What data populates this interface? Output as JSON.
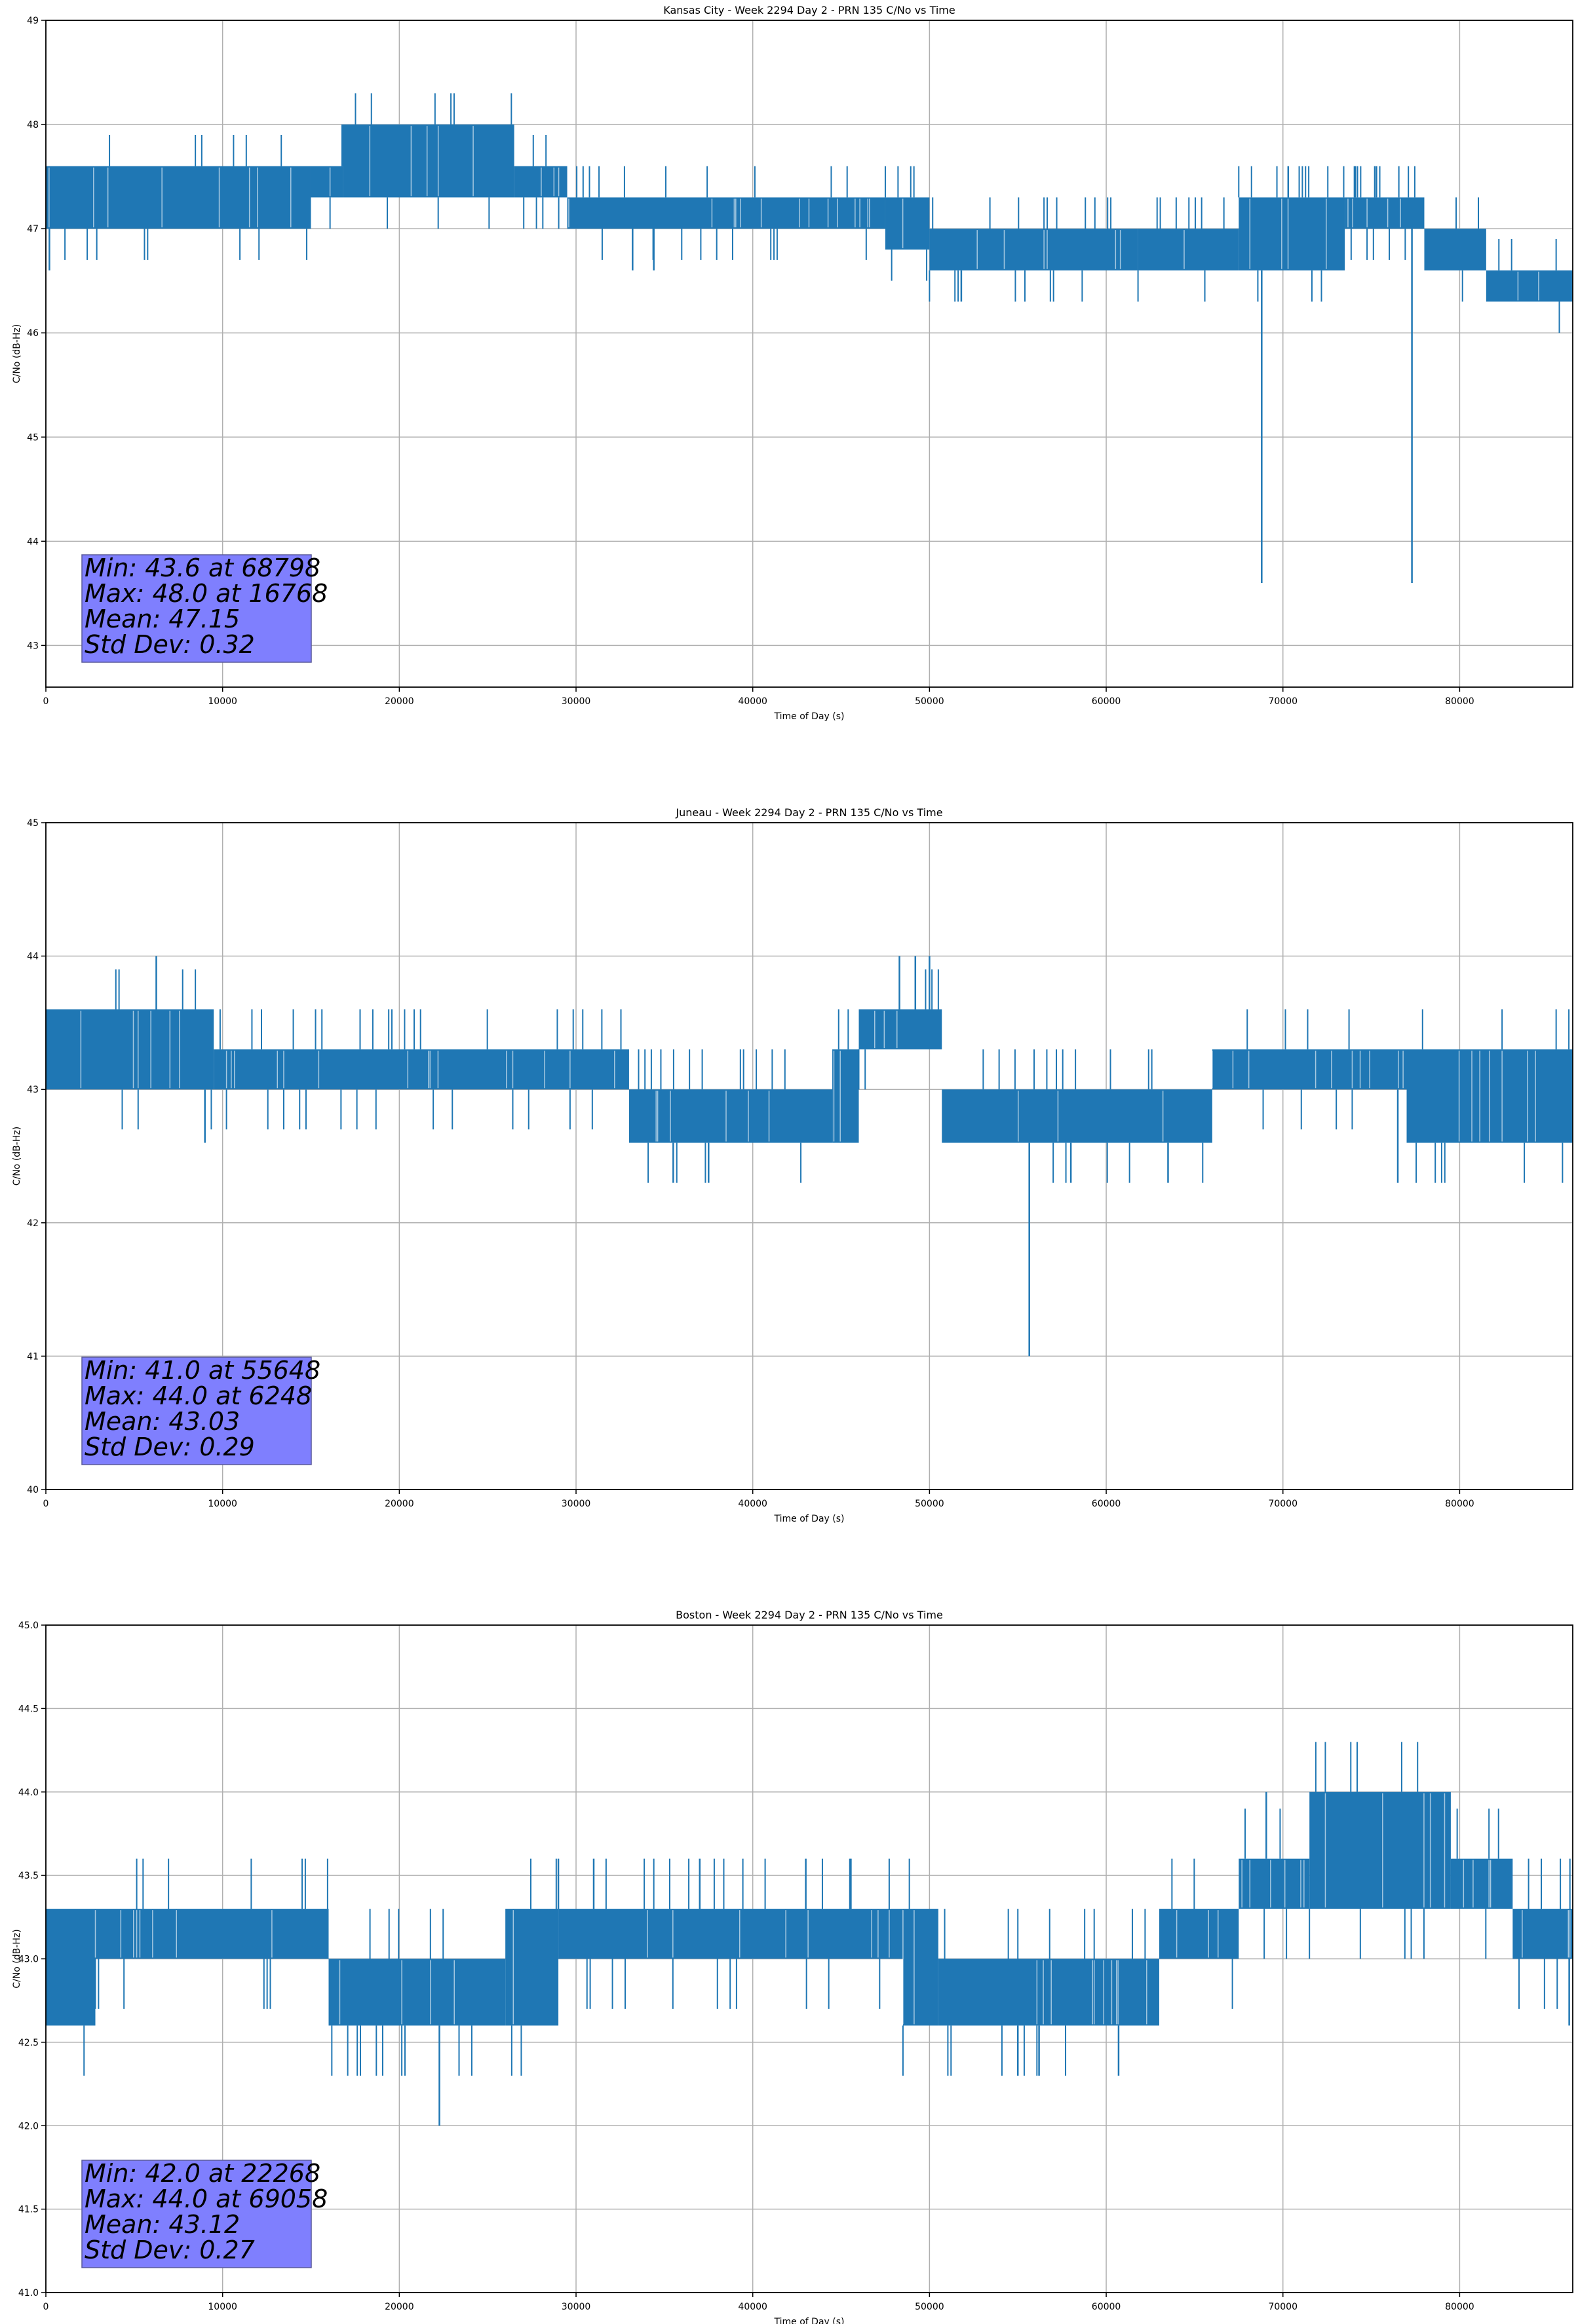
{
  "chart_data": [
    {
      "type": "line",
      "title": "Kansas City - Week 2294 Day 2 - PRN 135 C/No vs Time",
      "xlabel": "Time of Day (s)",
      "ylabel": "C/No (dB-Hz)",
      "xlim": [
        0,
        86400
      ],
      "ylim": [
        42.6,
        49
      ],
      "xticks": [
        0,
        10000,
        20000,
        30000,
        40000,
        50000,
        60000,
        70000,
        80000
      ],
      "yticks": [
        43,
        44,
        45,
        46,
        47,
        48,
        49
      ],
      "ytick_labels": [
        "43",
        "44",
        "45",
        "46",
        "47",
        "48",
        "49"
      ],
      "grid": true,
      "color": "#1f77b4",
      "series": [
        {
          "bands": [
            {
              "x0": 0,
              "x1": 15000,
              "lo": 47.0,
              "hi": 47.6
            },
            {
              "x0": 15000,
              "x1": 16800,
              "lo": 47.3,
              "hi": 47.6
            },
            {
              "x0": 16800,
              "x1": 26500,
              "lo": 47.3,
              "hi": 48.0
            },
            {
              "x0": 26500,
              "x1": 29500,
              "lo": 47.3,
              "hi": 47.6
            },
            {
              "x0": 29500,
              "x1": 47500,
              "lo": 47.0,
              "hi": 47.3
            },
            {
              "x0": 47500,
              "x1": 50000,
              "lo": 46.8,
              "hi": 47.3
            },
            {
              "x0": 50000,
              "x1": 61800,
              "lo": 46.6,
              "hi": 47.0
            },
            {
              "x0": 61800,
              "x1": 67500,
              "lo": 46.6,
              "hi": 47.0
            },
            {
              "x0": 67500,
              "x1": 73500,
              "lo": 46.6,
              "hi": 47.3
            },
            {
              "x0": 73500,
              "x1": 78000,
              "lo": 47.0,
              "hi": 47.3
            },
            {
              "x0": 78000,
              "x1": 81500,
              "lo": 46.6,
              "hi": 47.0
            },
            {
              "x0": 81500,
              "x1": 86400,
              "lo": 46.3,
              "hi": 46.6
            }
          ],
          "spikes": [
            {
              "x": 200,
              "y": 46.6
            },
            {
              "x": 16768,
              "y": 48.0
            },
            {
              "x": 33200,
              "y": 46.6
            },
            {
              "x": 34400,
              "y": 46.6
            },
            {
              "x": 51800,
              "y": 46.3
            },
            {
              "x": 68798,
              "y": 43.6
            },
            {
              "x": 77300,
              "y": 43.6
            },
            {
              "x": 70300,
              "y": 47.6
            },
            {
              "x": 74100,
              "y": 47.6
            },
            {
              "x": 75200,
              "y": 47.6
            }
          ]
        }
      ],
      "stats": {
        "min": "Min: 43.6 at 68798",
        "max": "Max: 48.0 at 16768",
        "mean": "Mean: 47.15",
        "std": "Std Dev: 0.32"
      }
    },
    {
      "type": "line",
      "title": "Juneau - Week 2294 Day 2 - PRN 135 C/No vs Time",
      "xlabel": "Time of Day (s)",
      "ylabel": "C/No (dB-Hz)",
      "xlim": [
        0,
        86400
      ],
      "ylim": [
        40,
        45
      ],
      "xticks": [
        0,
        10000,
        20000,
        30000,
        40000,
        50000,
        60000,
        70000,
        80000
      ],
      "yticks": [
        40,
        41,
        42,
        43,
        44,
        45
      ],
      "ytick_labels": [
        "40",
        "41",
        "42",
        "43",
        "44",
        "45"
      ],
      "grid": true,
      "color": "#1f77b4",
      "series": [
        {
          "bands": [
            {
              "x0": 0,
              "x1": 9500,
              "lo": 43.0,
              "hi": 43.6
            },
            {
              "x0": 9500,
              "x1": 33000,
              "lo": 43.0,
              "hi": 43.3
            },
            {
              "x0": 33000,
              "x1": 44500,
              "lo": 42.6,
              "hi": 43.0
            },
            {
              "x0": 44500,
              "x1": 46000,
              "lo": 42.6,
              "hi": 43.3
            },
            {
              "x0": 46000,
              "x1": 50700,
              "lo": 43.3,
              "hi": 43.6
            },
            {
              "x0": 50700,
              "x1": 66000,
              "lo": 42.6,
              "hi": 43.0
            },
            {
              "x0": 66000,
              "x1": 77000,
              "lo": 43.0,
              "hi": 43.3
            },
            {
              "x0": 77000,
              "x1": 86400,
              "lo": 42.6,
              "hi": 43.3
            }
          ],
          "spikes": [
            {
              "x": 6248,
              "y": 44.0
            },
            {
              "x": 9000,
              "y": 42.6
            },
            {
              "x": 35500,
              "y": 42.3
            },
            {
              "x": 37500,
              "y": 42.3
            },
            {
              "x": 48300,
              "y": 44.0
            },
            {
              "x": 49200,
              "y": 44.0
            },
            {
              "x": 50000,
              "y": 44.0
            },
            {
              "x": 55648,
              "y": 41.0
            },
            {
              "x": 58000,
              "y": 42.3
            },
            {
              "x": 63500,
              "y": 42.3
            },
            {
              "x": 76500,
              "y": 42.3
            }
          ]
        }
      ],
      "stats": {
        "min": "Min: 41.0 at 55648",
        "max": "Max: 44.0 at 6248",
        "mean": "Mean: 43.03",
        "std": "Std Dev: 0.29"
      }
    },
    {
      "type": "line",
      "title": "Boston - Week 2294 Day 2 - PRN 135 C/No vs Time",
      "xlabel": "Time of Day (s)",
      "ylabel": "C/No (dB-Hz)",
      "xlim": [
        0,
        86400
      ],
      "ylim": [
        41,
        45
      ],
      "xticks": [
        0,
        10000,
        20000,
        30000,
        40000,
        50000,
        60000,
        70000,
        80000
      ],
      "yticks": [
        41.0,
        41.5,
        42.0,
        42.5,
        43.0,
        43.5,
        44.0,
        44.5,
        45.0
      ],
      "ytick_labels": [
        "41.0",
        "41.5",
        "42.0",
        "42.5",
        "43.0",
        "43.5",
        "44.0",
        "44.5",
        "45.0"
      ],
      "grid": true,
      "color": "#1f77b4",
      "series": [
        {
          "bands": [
            {
              "x0": 0,
              "x1": 2800,
              "lo": 42.6,
              "hi": 43.3
            },
            {
              "x0": 2800,
              "x1": 16000,
              "lo": 43.0,
              "hi": 43.3
            },
            {
              "x0": 16000,
              "x1": 26000,
              "lo": 42.6,
              "hi": 43.0
            },
            {
              "x0": 26000,
              "x1": 29000,
              "lo": 42.6,
              "hi": 43.3
            },
            {
              "x0": 29000,
              "x1": 48500,
              "lo": 43.0,
              "hi": 43.3
            },
            {
              "x0": 48500,
              "x1": 50500,
              "lo": 42.6,
              "hi": 43.3
            },
            {
              "x0": 50500,
              "x1": 63000,
              "lo": 42.6,
              "hi": 43.0
            },
            {
              "x0": 63000,
              "x1": 67500,
              "lo": 43.0,
              "hi": 43.3
            },
            {
              "x0": 67500,
              "x1": 71500,
              "lo": 43.3,
              "hi": 43.6
            },
            {
              "x0": 71500,
              "x1": 79500,
              "lo": 43.3,
              "hi": 44.0
            },
            {
              "x0": 79500,
              "x1": 83000,
              "lo": 43.3,
              "hi": 43.6
            },
            {
              "x0": 83000,
              "x1": 86400,
              "lo": 43.0,
              "hi": 43.3
            }
          ],
          "spikes": [
            {
              "x": 22268,
              "y": 42.0
            },
            {
              "x": 29000,
              "y": 43.6
            },
            {
              "x": 31000,
              "y": 43.6
            },
            {
              "x": 37000,
              "y": 43.6
            },
            {
              "x": 43000,
              "y": 43.6
            },
            {
              "x": 45500,
              "y": 43.6
            },
            {
              "x": 55000,
              "y": 42.3
            },
            {
              "x": 56200,
              "y": 42.3
            },
            {
              "x": 60700,
              "y": 42.3
            },
            {
              "x": 69058,
              "y": 44.0
            },
            {
              "x": 86200,
              "y": 42.6
            }
          ]
        }
      ],
      "stats": {
        "min": "Min: 42.0 at 22268",
        "max": "Max: 44.0 at 69058",
        "mean": "Mean: 43.12",
        "std": "Std Dev: 0.27"
      }
    }
  ]
}
